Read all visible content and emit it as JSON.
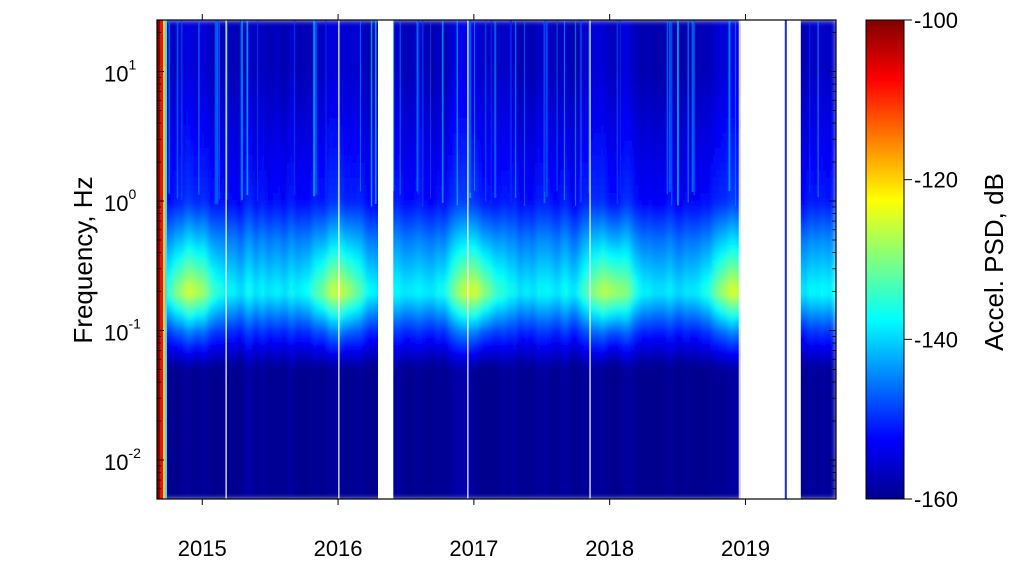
{
  "chart_data": {
    "type": "heatmap",
    "title": "",
    "xlabel": "",
    "ylabel": "Frequency, Hz",
    "y_scale": "log",
    "x_ticks": [
      "2015",
      "2016",
      "2017",
      "2018",
      "2019"
    ],
    "y_ticks": [
      {
        "base": "10",
        "exp": "-2",
        "value": 0.01
      },
      {
        "base": "10",
        "exp": "-1",
        "value": 0.1
      },
      {
        "base": "10",
        "exp": "0",
        "value": 1
      },
      {
        "base": "10",
        "exp": "1",
        "value": 10
      }
    ],
    "xlim": [
      "2014-09",
      "2019-08"
    ],
    "ylim": [
      0.005,
      25
    ],
    "colorbar": {
      "label": "Accel. PSD, dB",
      "range": [
        -160,
        -100
      ],
      "ticks": [
        "-100",
        "-120",
        "-140",
        "-160"
      ],
      "colormap": "jet"
    },
    "data_gaps": [
      {
        "from": "2016-04",
        "to": "2016-05"
      },
      {
        "from": "2018-12",
        "to": "2019-05"
      }
    ],
    "microseism_band_hz": [
      0.1,
      1
    ],
    "peak_frequency_hz": 0.2,
    "seasonal_peaks": [
      "2014-12",
      "2016-01",
      "2017-01",
      "2018-01",
      "2018-12"
    ],
    "approx_psd_db": {
      "frequency_hz": [
        0.01,
        0.05,
        0.1,
        0.2,
        0.5,
        1,
        10
      ],
      "winter": [
        -160,
        -160,
        -145,
        -125,
        -140,
        -150,
        -155
      ],
      "summer": [
        -160,
        -160,
        -150,
        -138,
        -145,
        -152,
        -157
      ]
    },
    "grid": false,
    "legend": "none"
  }
}
